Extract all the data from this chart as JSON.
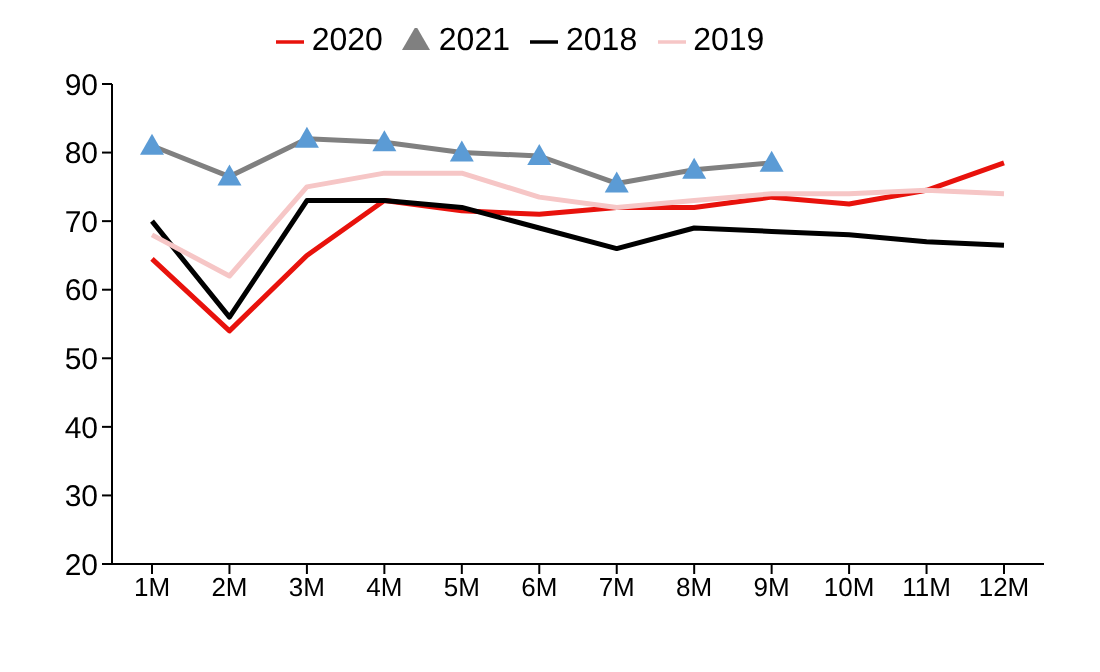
{
  "chart_data": {
    "type": "line",
    "categories": [
      "1M",
      "2M",
      "3M",
      "4M",
      "5M",
      "6M",
      "7M",
      "8M",
      "9M",
      "10M",
      "11M",
      "12M"
    ],
    "series": [
      {
        "name": "2020",
        "color": "#e8120c",
        "values": [
          64.5,
          54,
          65,
          73,
          71.5,
          71,
          72,
          72,
          73.5,
          72.5,
          74.5,
          78.5
        ]
      },
      {
        "name": "2021",
        "color": "#808080",
        "marker": "triangle",
        "colors": [
          "#5b9bd5",
          "#5b9bd5",
          "#5b9bd5",
          "#5b9bd5",
          "#5b9bd5",
          "#5b9bd5",
          "#5b9bd5",
          "#5b9bd5",
          "#5b9bd5",
          null,
          null,
          null
        ],
        "values": [
          81,
          76.5,
          82,
          81.5,
          80,
          79.5,
          75.5,
          77.5,
          78.5,
          null,
          null,
          null
        ]
      },
      {
        "name": "2018",
        "color": "#000000",
        "values": [
          70,
          56,
          73,
          73,
          72,
          69,
          66,
          69,
          68.5,
          68,
          67,
          66.5
        ]
      },
      {
        "name": "2019",
        "color": "#f6c6c6",
        "values": [
          68,
          62,
          75,
          77,
          77,
          73.5,
          72,
          73,
          74,
          74,
          74.5,
          74
        ]
      }
    ],
    "ylim": [
      20,
      90
    ],
    "yticks": [
      20,
      30,
      40,
      50,
      60,
      70,
      80,
      90
    ],
    "grid": false,
    "legend": "top",
    "marker": "none",
    "line_style": "solid"
  }
}
